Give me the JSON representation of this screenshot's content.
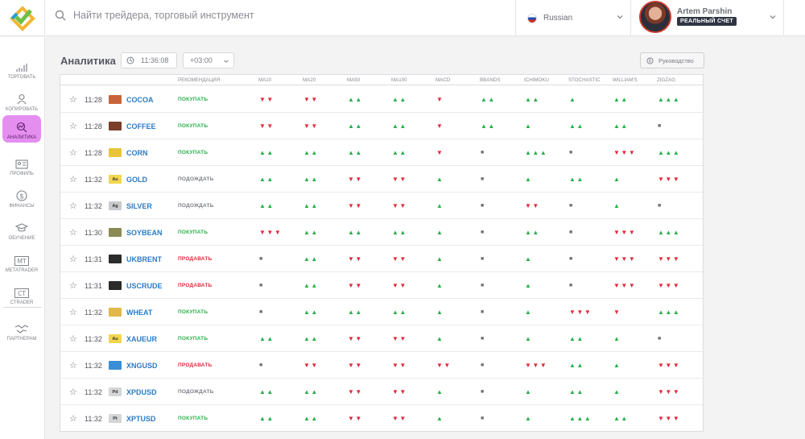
{
  "search": {
    "placeholder": "Найти трейдера, торговый инструмент"
  },
  "language": {
    "label": "Russian"
  },
  "user": {
    "name": "Artem Parshin",
    "account_badge": "РЕАЛЬНЫЙ СЧЕТ"
  },
  "sidebar": {
    "items": [
      {
        "label": "ТОРГОВАТЬ",
        "icon": "trade-chart-icon"
      },
      {
        "label": "КОПИРОВАТЬ",
        "icon": "copy-user-icon"
      },
      {
        "label": "АНАЛИТИКА",
        "icon": "analytics-icon",
        "active": true
      },
      {
        "label": "ПРОФИЛЬ",
        "icon": "profile-card-icon"
      },
      {
        "label": "ФИНАНСЫ",
        "icon": "dollar-icon"
      },
      {
        "label": "ОБУЧЕНИЕ",
        "icon": "graduation-cap-icon"
      },
      {
        "label": "METATRADER",
        "icon": "mt-icon"
      },
      {
        "label": "CTRADER",
        "icon": "ct-icon"
      },
      {
        "label": "ПАРТНЕРАМ",
        "icon": "handshake-icon"
      }
    ],
    "active_color": "#e48ff0"
  },
  "page": {
    "title": "Аналитика",
    "clock": "11:36:08",
    "timezone": "+03:00",
    "guide_label": "Руководство"
  },
  "table": {
    "columns": [
      "РЕКОМЕНДАЦИЯ",
      "MA10",
      "MA20",
      "MA50",
      "MA100",
      "MACD",
      "BBANDS",
      "ICHIMOKU",
      "STOCHASTIC",
      "WILLIAM'S",
      "ZIGZAG"
    ],
    "colors": {
      "up": "#27b14a",
      "down": "#e0283a",
      "symbol": "#2a7cc7"
    },
    "rows": [
      {
        "time": "11:28",
        "symbol": "COCOA",
        "icon_color": "#c8643c",
        "icon_text": "",
        "rec": "ПОКУПАТЬ",
        "rec_color": "#27b14a",
        "signals": [
          "▼▼",
          "▼▼",
          "▲▲",
          "▲▲",
          "▼",
          "▲▲",
          "▲▲",
          "▲",
          "▲▲",
          "▲▲▲"
        ]
      },
      {
        "time": "11:28",
        "symbol": "COFFEE",
        "icon_color": "#7a3e2a",
        "icon_text": "",
        "rec": "ПОКУПАТЬ",
        "rec_color": "#27b14a",
        "signals": [
          "▼▼",
          "▼▼",
          "▲▲",
          "▲▲",
          "▼",
          "▲▲",
          "▲",
          "▲▲",
          "▲▲",
          "■"
        ]
      },
      {
        "time": "11:28",
        "symbol": "CORN",
        "icon_color": "#e9c43a",
        "icon_text": "",
        "rec": "ПОКУПАТЬ",
        "rec_color": "#27b14a",
        "signals": [
          "▲▲",
          "▲▲",
          "▲▲",
          "▲▲",
          "▼",
          "■",
          "▲▲▲",
          "■",
          "▼▼▼",
          "▲▲▲"
        ]
      },
      {
        "time": "11:32",
        "symbol": "GOLD",
        "icon_color": "#f2d64b",
        "icon_text": "Au",
        "rec": "ПОДОЖДАТЬ",
        "rec_color": "#7b7e85",
        "signals": [
          "▲▲",
          "▲▲",
          "▼▼",
          "▼▼",
          "▲",
          "■",
          "▲",
          "▲▲",
          "▲",
          "▼▼▼"
        ]
      },
      {
        "time": "11:32",
        "symbol": "SILVER",
        "icon_color": "#c9cacd",
        "icon_text": "Ag",
        "rec": "ПОДОЖДАТЬ",
        "rec_color": "#7b7e85",
        "signals": [
          "▲▲",
          "▲▲",
          "▼▼",
          "▼▼",
          "▲",
          "■",
          "▼▼",
          "■",
          "▲",
          "■"
        ]
      },
      {
        "time": "11:30",
        "symbol": "SOYBEAN",
        "icon_color": "#8a8a55",
        "icon_text": "",
        "rec": "ПОКУПАТЬ",
        "rec_color": "#27b14a",
        "signals": [
          "▼▼▼",
          "▲▲",
          "▲▲",
          "▲▲",
          "▲",
          "■",
          "▲▲",
          "■",
          "▼▼▼",
          "▲▲▲"
        ]
      },
      {
        "time": "11:31",
        "symbol": "UKBRENT",
        "icon_color": "#2b2b2b",
        "icon_text": "",
        "rec": "ПРОДАВАТЬ",
        "rec_color": "#e0283a",
        "signals": [
          "■",
          "▲▲",
          "▼▼",
          "▼▼",
          "▲",
          "■",
          "▲",
          "■",
          "▼▼▼",
          "▼▼▼"
        ]
      },
      {
        "time": "11:31",
        "symbol": "USCRUDE",
        "icon_color": "#2b2b2b",
        "icon_text": "",
        "rec": "ПРОДАВАТЬ",
        "rec_color": "#e0283a",
        "signals": [
          "■",
          "▲▲",
          "▼▼",
          "▼▼",
          "▲",
          "■",
          "▲",
          "■",
          "▼▼▼",
          "▼▼▼"
        ]
      },
      {
        "time": "11:32",
        "symbol": "WHEAT",
        "icon_color": "#e3b84a",
        "icon_text": "",
        "rec": "ПОКУПАТЬ",
        "rec_color": "#27b14a",
        "signals": [
          "■",
          "▲▲",
          "▲▲",
          "▲▲",
          "▲",
          "■",
          "▲",
          "▼▼▼",
          "▼",
          "▲▲▲"
        ]
      },
      {
        "time": "11:32",
        "symbol": "XAUEUR",
        "icon_color": "#f2d64b",
        "icon_text": "Au",
        "rec": "ПОКУПАТЬ",
        "rec_color": "#27b14a",
        "signals": [
          "▲▲",
          "▲▲",
          "▼▼",
          "▼▼",
          "▲",
          "■",
          "▲",
          "▲▲",
          "▲",
          "■"
        ]
      },
      {
        "time": "11:32",
        "symbol": "XNGUSD",
        "icon_color": "#3a8ed6",
        "icon_text": "",
        "rec": "ПРОДАВАТЬ",
        "rec_color": "#e0283a",
        "signals": [
          "■",
          "▼▼",
          "▼▼",
          "▼▼",
          "▼▼",
          "■",
          "▼▼▼",
          "▲▲",
          "▲",
          "▼▼▼"
        ]
      },
      {
        "time": "11:32",
        "symbol": "XPDUSD",
        "icon_color": "#d5d6d8",
        "icon_text": "Pd",
        "rec": "ПОДОЖДАТЬ",
        "rec_color": "#7b7e85",
        "signals": [
          "▲▲",
          "▲▲",
          "▼▼",
          "▼▼",
          "▲",
          "■",
          "▲",
          "▲▲",
          "▲",
          "▼▼▼"
        ]
      },
      {
        "time": "11:32",
        "symbol": "XPTUSD",
        "icon_color": "#d5d6d8",
        "icon_text": "Pt",
        "rec": "ПОКУПАТЬ",
        "rec_color": "#27b14a",
        "signals": [
          "▲▲",
          "▲▲",
          "▼▼",
          "▼▼",
          "▲",
          "■",
          "▲",
          "▲▲▲",
          "▲▲",
          "▼▼▼"
        ]
      }
    ]
  }
}
